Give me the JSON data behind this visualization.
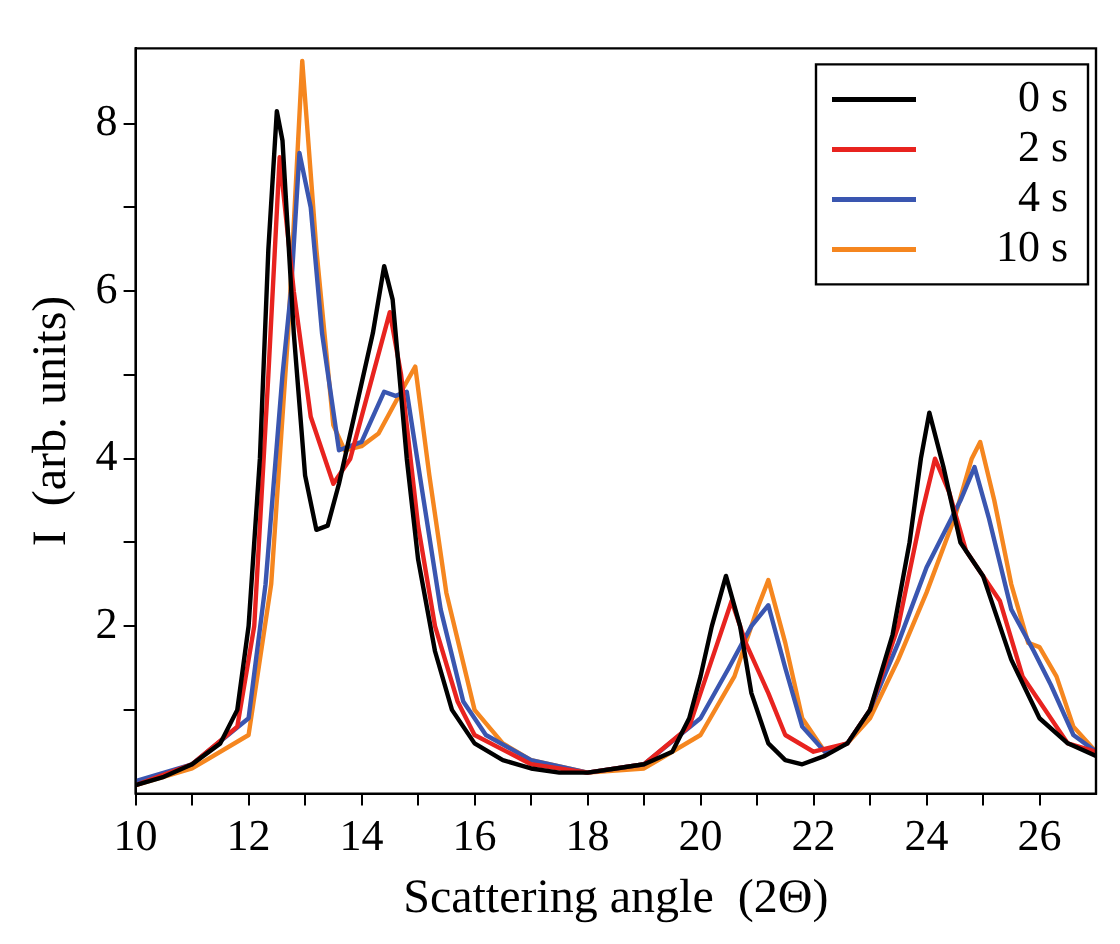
{
  "chart_data": {
    "type": "line",
    "xlabel": "Scattering angle  (2Θ)",
    "ylabel": "I  (arb. units)",
    "xlim": [
      10,
      27
    ],
    "ylim": [
      0,
      8.9
    ],
    "xticks": [
      10,
      {
        "value": 11,
        "label": null
      },
      12,
      {
        "value": 13,
        "label": null
      },
      14,
      {
        "value": 15,
        "label": null
      },
      16,
      {
        "value": 17,
        "label": null
      },
      18,
      {
        "value": 19,
        "label": null
      },
      20,
      {
        "value": 21,
        "label": null
      },
      22,
      {
        "value": 23,
        "label": null
      },
      24,
      {
        "value": 25,
        "label": null
      },
      26
    ],
    "yticks": [
      {
        "value": 1,
        "label": null
      },
      2,
      {
        "value": 3,
        "label": null
      },
      4,
      {
        "value": 5,
        "label": null
      },
      6,
      {
        "value": 7,
        "label": null
      },
      8
    ],
    "grid": false,
    "legend": "top right",
    "marker": "none",
    "line_style": "solid",
    "series": [
      {
        "name": "0 s",
        "color": "#000000",
        "x": [
          10,
          10.5,
          11,
          11.5,
          11.8,
          12,
          12.2,
          12.35,
          12.5,
          12.6,
          12.8,
          13,
          13.2,
          13.4,
          13.6,
          13.9,
          14.2,
          14.4,
          14.55,
          14.8,
          15,
          15.3,
          15.6,
          16,
          16.5,
          17,
          17.5,
          18,
          18.5,
          19,
          19.5,
          19.8,
          20,
          20.2,
          20.45,
          20.7,
          20.9,
          21.2,
          21.5,
          21.8,
          22.2,
          22.6,
          23,
          23.4,
          23.7,
          23.9,
          24.05,
          24.3,
          24.6,
          25,
          25.5,
          26,
          26.5,
          27
        ],
        "values": [
          0.1,
          0.2,
          0.35,
          0.6,
          1,
          2,
          4,
          6.5,
          8.15,
          7.8,
          5.5,
          3.8,
          3.15,
          3.2,
          3.7,
          4.6,
          5.5,
          6.3,
          5.9,
          4,
          2.8,
          1.7,
          1,
          0.6,
          0.4,
          0.3,
          0.25,
          0.25,
          0.3,
          0.35,
          0.5,
          0.9,
          1.4,
          2,
          2.6,
          2,
          1.2,
          0.6,
          0.4,
          0.35,
          0.45,
          0.6,
          1,
          1.9,
          3,
          4,
          4.55,
          3.9,
          3,
          2.6,
          1.6,
          0.9,
          0.6,
          0.45
        ]
      },
      {
        "name": "2 s",
        "color": "#e8231f",
        "x": [
          10,
          11,
          11.8,
          12.1,
          12.35,
          12.55,
          12.8,
          13.1,
          13.5,
          13.8,
          14.2,
          14.5,
          14.7,
          15,
          15.3,
          15.7,
          16,
          17,
          18,
          19,
          19.8,
          20.2,
          20.55,
          20.8,
          21.2,
          21.5,
          22,
          22.6,
          23,
          23.5,
          23.9,
          24.15,
          24.4,
          24.7,
          25,
          25.3,
          25.7,
          26,
          26.5,
          27
        ],
        "values": [
          0.1,
          0.35,
          0.8,
          2,
          5,
          7.6,
          6,
          4.5,
          3.7,
          4,
          5,
          5.75,
          5,
          3.2,
          2,
          1.1,
          0.7,
          0.35,
          0.25,
          0.35,
          0.8,
          1.6,
          2.3,
          1.8,
          1.2,
          0.7,
          0.5,
          0.6,
          1,
          2,
          3.3,
          4,
          3.6,
          2.9,
          2.6,
          2.3,
          1.4,
          1.1,
          0.6,
          0.5
        ]
      },
      {
        "name": "4 s",
        "color": "#3a56b0",
        "x": [
          10,
          11,
          12,
          12.3,
          12.6,
          12.75,
          12.9,
          13.1,
          13.3,
          13.6,
          14,
          14.4,
          14.6,
          14.8,
          15.1,
          15.4,
          15.8,
          16.2,
          17,
          18,
          19,
          20,
          20.5,
          20.9,
          21.2,
          21.5,
          21.8,
          22.2,
          22.6,
          23,
          23.5,
          24,
          24.3,
          24.6,
          24.85,
          25.1,
          25.5,
          25.9,
          26.2,
          26.6,
          27
        ],
        "values": [
          0.15,
          0.35,
          0.9,
          2.5,
          5,
          6,
          7.65,
          7,
          5.5,
          4.1,
          4.2,
          4.8,
          4.75,
          4.8,
          3.5,
          2.2,
          1.1,
          0.7,
          0.4,
          0.25,
          0.35,
          0.9,
          1.5,
          2,
          2.25,
          1.5,
          0.8,
          0.5,
          0.6,
          1,
          1.8,
          2.7,
          3.1,
          3.5,
          3.9,
          3.3,
          2.2,
          1.7,
          1.3,
          0.7,
          0.5
        ]
      },
      {
        "name": "10 s",
        "color": "#f5861f",
        "x": [
          10,
          11,
          12,
          12.4,
          12.7,
          12.95,
          13.2,
          13.5,
          13.7,
          14,
          14.3,
          14.7,
          14.95,
          15.2,
          15.5,
          16,
          16.5,
          17,
          18,
          19,
          20,
          20.6,
          21,
          21.2,
          21.5,
          21.8,
          22.2,
          22.6,
          23,
          23.5,
          24,
          24.5,
          24.8,
          24.95,
          25.2,
          25.5,
          25.8,
          26,
          26.3,
          26.6,
          27
        ],
        "values": [
          0.1,
          0.3,
          0.7,
          2.5,
          5.5,
          8.75,
          6.5,
          4.4,
          4.1,
          4.15,
          4.3,
          4.8,
          5.1,
          3.8,
          2.4,
          1,
          0.6,
          0.4,
          0.25,
          0.3,
          0.7,
          1.4,
          2.2,
          2.55,
          1.8,
          0.9,
          0.5,
          0.6,
          0.9,
          1.6,
          2.4,
          3.3,
          4,
          4.2,
          3.5,
          2.5,
          1.8,
          1.75,
          1.4,
          0.8,
          0.5
        ]
      }
    ]
  }
}
